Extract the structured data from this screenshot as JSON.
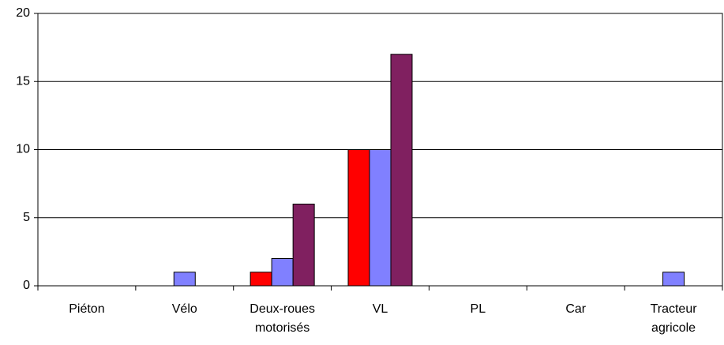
{
  "chart_data": {
    "type": "bar",
    "categories": [
      "Piéton",
      "Vélo",
      "Deux-roues motorisés",
      "VL",
      "PL",
      "Car",
      "Tracteur agricole"
    ],
    "series": [
      {
        "color": "#ff0000",
        "values": [
          0,
          0,
          1,
          10,
          0,
          0,
          0
        ]
      },
      {
        "color": "#8080ff",
        "values": [
          0,
          1,
          2,
          10,
          0,
          0,
          1
        ]
      },
      {
        "color": "#802060",
        "values": [
          0,
          0,
          6,
          17,
          0,
          0,
          0
        ]
      }
    ],
    "ylim": [
      0,
      20
    ],
    "yticks": [
      0,
      5,
      10,
      15,
      20
    ],
    "grid": true
  }
}
